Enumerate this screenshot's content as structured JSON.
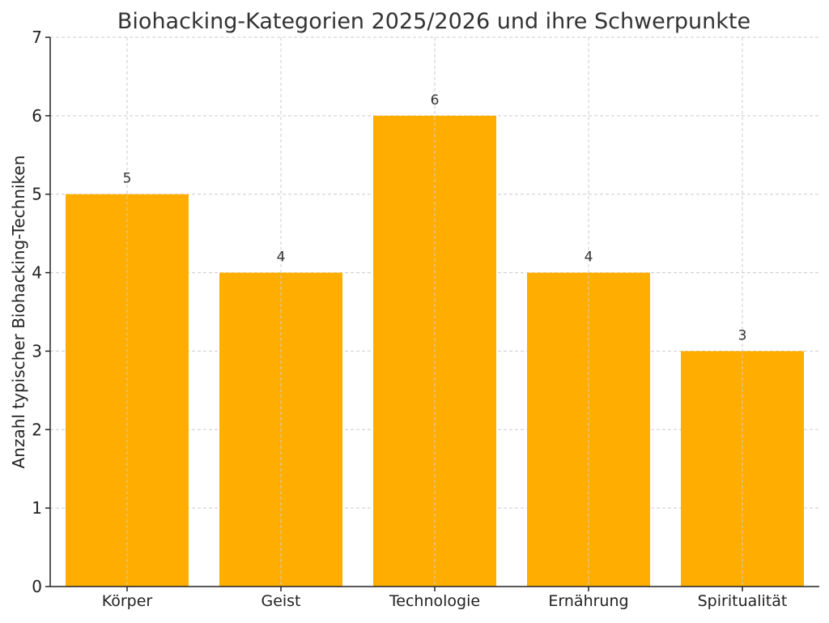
{
  "chart_data": {
    "type": "bar",
    "title": "Biohacking-Kategorien 2025/2026 und ihre Schwerpunkte",
    "xlabel": "",
    "ylabel": "Anzahl typischer Biohacking-Techniken",
    "categories": [
      "Körper",
      "Geist",
      "Technologie",
      "Ernährung",
      "Spiritualität"
    ],
    "values": [
      5,
      4,
      6,
      4,
      3
    ],
    "data_labels": [
      "5",
      "4",
      "6",
      "4",
      "3"
    ],
    "ylim": [
      0,
      7
    ],
    "yticks": [
      "0",
      "1",
      "2",
      "3",
      "4",
      "5",
      "6",
      "7"
    ],
    "grid": true,
    "bar_color": "#ffae00",
    "grid_color": "#cccccc",
    "text_color": "#333333"
  }
}
